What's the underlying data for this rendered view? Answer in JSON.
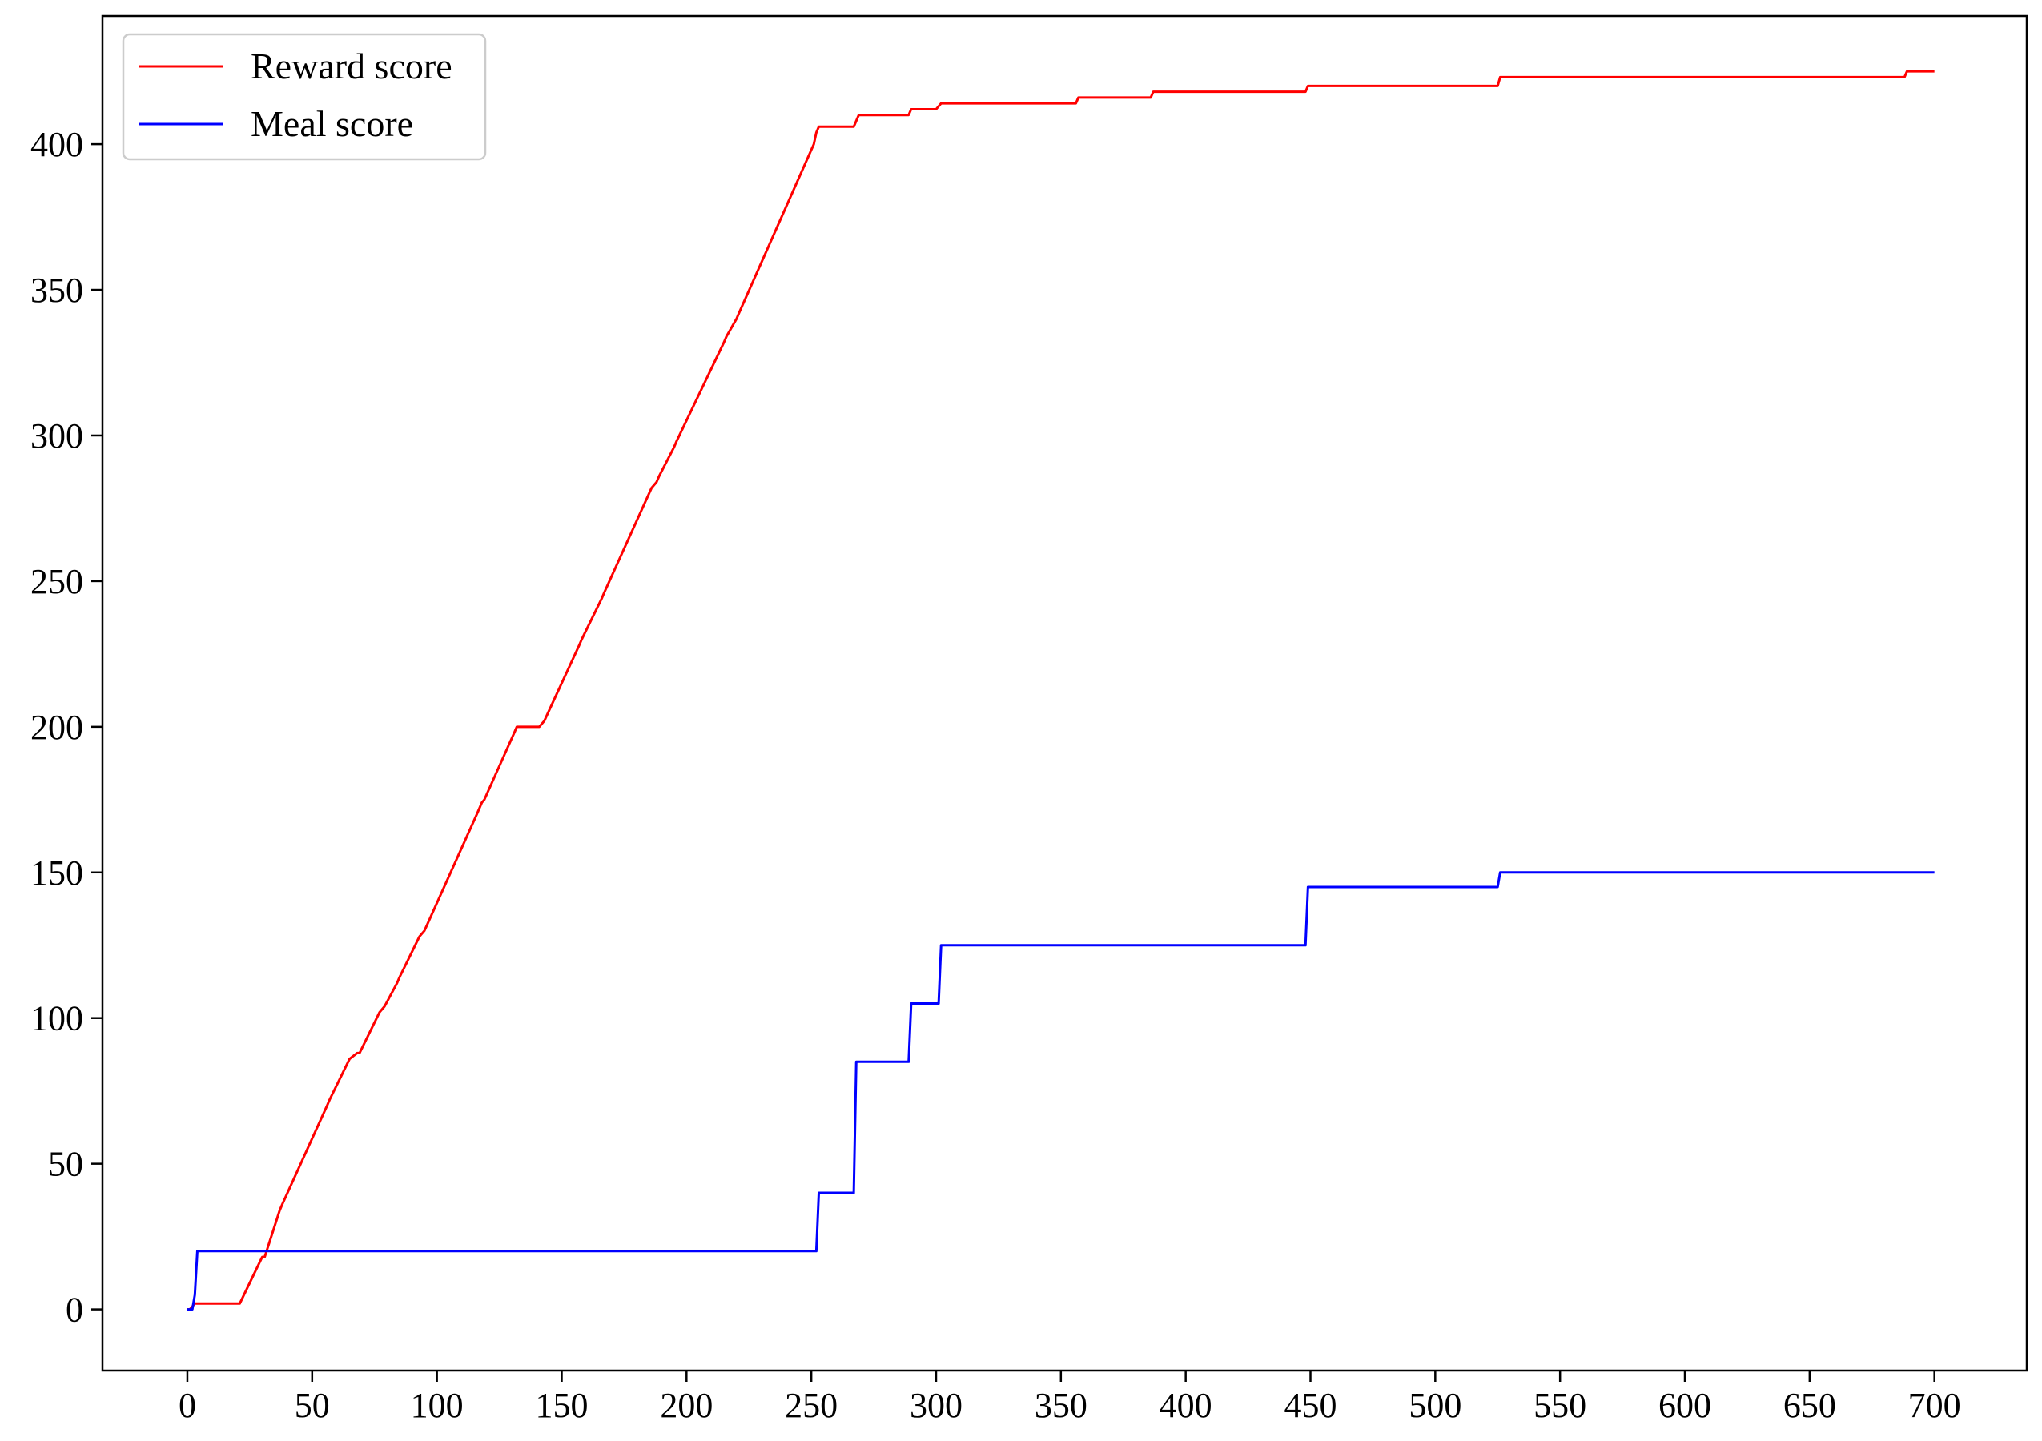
{
  "chart_data": {
    "type": "line",
    "title": "",
    "xlabel": "",
    "ylabel": "",
    "xlim": [
      -34,
      737
    ],
    "ylim": [
      -21,
      444
    ],
    "xticks": [
      0,
      50,
      100,
      150,
      200,
      250,
      300,
      350,
      400,
      450,
      500,
      550,
      600,
      650,
      700
    ],
    "yticks": [
      0,
      50,
      100,
      150,
      200,
      250,
      300,
      350,
      400
    ],
    "grid": false,
    "legend_position": "top-left",
    "series": [
      {
        "name": "Reward score",
        "color": "#ff0000",
        "x": [
          0,
          1,
          2,
          3,
          4,
          21,
          30,
          31,
          37,
          38,
          56,
          57,
          65,
          68,
          69,
          77,
          79,
          84,
          85,
          93,
          95,
          116,
          117,
          118,
          119,
          131,
          132,
          141,
          142,
          143,
          157,
          158,
          166,
          167,
          186,
          188,
          189,
          195,
          196,
          215,
          216,
          220,
          221,
          251,
          252,
          253,
          267,
          268,
          269,
          289,
          290,
          300,
          301,
          302,
          356,
          357,
          386,
          387,
          448,
          449,
          525,
          526,
          688,
          689,
          700
        ],
        "y": [
          0,
          0,
          1,
          2,
          2,
          2,
          18,
          18,
          34,
          36,
          70,
          72,
          86,
          88,
          88,
          102,
          104,
          112,
          114,
          128,
          130,
          170,
          172,
          174,
          175,
          198,
          200,
          200,
          201,
          202,
          228,
          230,
          244,
          246,
          282,
          284,
          286,
          296,
          298,
          332,
          334,
          340,
          342,
          400,
          404,
          406,
          406,
          408,
          410,
          410,
          412,
          412,
          413,
          414,
          414,
          416,
          416,
          418,
          418,
          420,
          420,
          423,
          423,
          425,
          425
        ]
      },
      {
        "name": "Meal score",
        "color": "#0000ff",
        "x": [
          0,
          2,
          3,
          4,
          252,
          253,
          267,
          268,
          289,
          290,
          301,
          302,
          448,
          449,
          525,
          526,
          700
        ],
        "y": [
          0,
          0,
          5,
          20,
          20,
          40,
          40,
          85,
          85,
          105,
          105,
          125,
          125,
          145,
          145,
          150,
          150
        ]
      }
    ]
  }
}
